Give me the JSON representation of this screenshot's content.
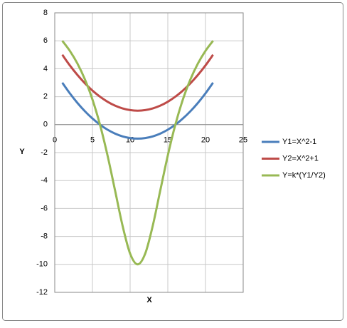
{
  "chart_data": {
    "type": "line",
    "x_label": "X",
    "y_label": "Y",
    "x": [
      1,
      2,
      3,
      4,
      5,
      6,
      7,
      8,
      9,
      10,
      11,
      12,
      13,
      14,
      15,
      16,
      17,
      18,
      19,
      20,
      21
    ],
    "series": [
      {
        "name": "Y1=X^2-1",
        "color": "#4a7ebb",
        "values": [
          3,
          2.24,
          1.56,
          0.96,
          0.44,
          0,
          -0.36,
          -0.64,
          -0.84,
          -0.96,
          -1,
          -0.96,
          -0.84,
          -0.64,
          -0.36,
          0,
          0.44,
          0.96,
          1.56,
          2.24,
          3
        ]
      },
      {
        "name": "Y2=X^2+1",
        "color": "#be4b48",
        "values": [
          5,
          4.24,
          3.56,
          2.96,
          2.44,
          2,
          1.64,
          1.36,
          1.16,
          1.04,
          1,
          1.04,
          1.16,
          1.36,
          1.64,
          2,
          2.44,
          2.96,
          3.56,
          4.24,
          5
        ]
      },
      {
        "name": "Y=k*(Y1/Y2)",
        "color": "#98b954",
        "values": [
          6,
          5.28,
          4.38,
          3.24,
          1.8,
          0,
          -2.2,
          -4.71,
          -7.24,
          -9.23,
          -10,
          -9.23,
          -7.24,
          -4.71,
          -2.2,
          0,
          1.8,
          3.24,
          4.38,
          5.28,
          6
        ]
      }
    ],
    "xlim": [
      0,
      25
    ],
    "xticks": [
      0,
      5,
      10,
      15,
      20,
      25
    ],
    "ylim": [
      -12,
      8
    ],
    "yticks": [
      -12,
      -10,
      -8,
      -6,
      -4,
      -2,
      0,
      2,
      4,
      6,
      8
    ],
    "grid": true,
    "legend": "right"
  }
}
